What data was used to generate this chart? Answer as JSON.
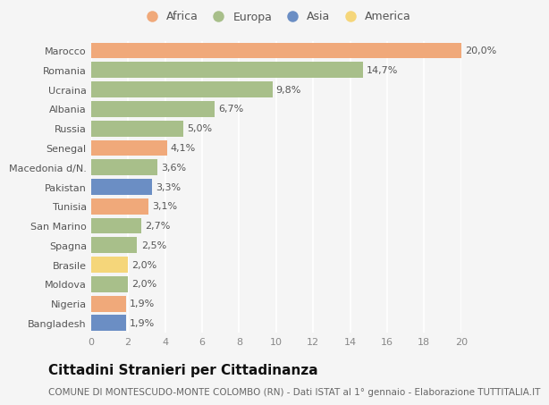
{
  "countries": [
    "Marocco",
    "Romania",
    "Ucraina",
    "Albania",
    "Russia",
    "Senegal",
    "Macedonia d/N.",
    "Pakistan",
    "Tunisia",
    "San Marino",
    "Spagna",
    "Brasile",
    "Moldova",
    "Nigeria",
    "Bangladesh"
  ],
  "values": [
    20.0,
    14.7,
    9.8,
    6.7,
    5.0,
    4.1,
    3.6,
    3.3,
    3.1,
    2.7,
    2.5,
    2.0,
    2.0,
    1.9,
    1.9
  ],
  "labels": [
    "20,0%",
    "14,7%",
    "9,8%",
    "6,7%",
    "5,0%",
    "4,1%",
    "3,6%",
    "3,3%",
    "3,1%",
    "2,7%",
    "2,5%",
    "2,0%",
    "2,0%",
    "1,9%",
    "1,9%"
  ],
  "continents": [
    "Africa",
    "Europa",
    "Europa",
    "Europa",
    "Europa",
    "Africa",
    "Europa",
    "Asia",
    "Africa",
    "Europa",
    "Europa",
    "America",
    "Europa",
    "Africa",
    "Asia"
  ],
  "colors": {
    "Africa": "#F0A97A",
    "Europa": "#A8BF8A",
    "Asia": "#6B8EC4",
    "America": "#F5D67A"
  },
  "legend_order": [
    "Africa",
    "Europa",
    "Asia",
    "America"
  ],
  "title": "Cittadini Stranieri per Cittadinanza",
  "subtitle": "COMUNE DI MONTESCUDO-MONTE COLOMBO (RN) - Dati ISTAT al 1° gennaio - Elaborazione TUTTITALIA.IT",
  "xlim": [
    0,
    20
  ],
  "xticks": [
    0,
    2,
    4,
    6,
    8,
    10,
    12,
    14,
    16,
    18,
    20
  ],
  "background_color": "#f5f5f5",
  "grid_color": "#ffffff",
  "bar_height": 0.82,
  "title_fontsize": 11,
  "subtitle_fontsize": 7.5,
  "label_fontsize": 8,
  "tick_fontsize": 8,
  "legend_fontsize": 9
}
